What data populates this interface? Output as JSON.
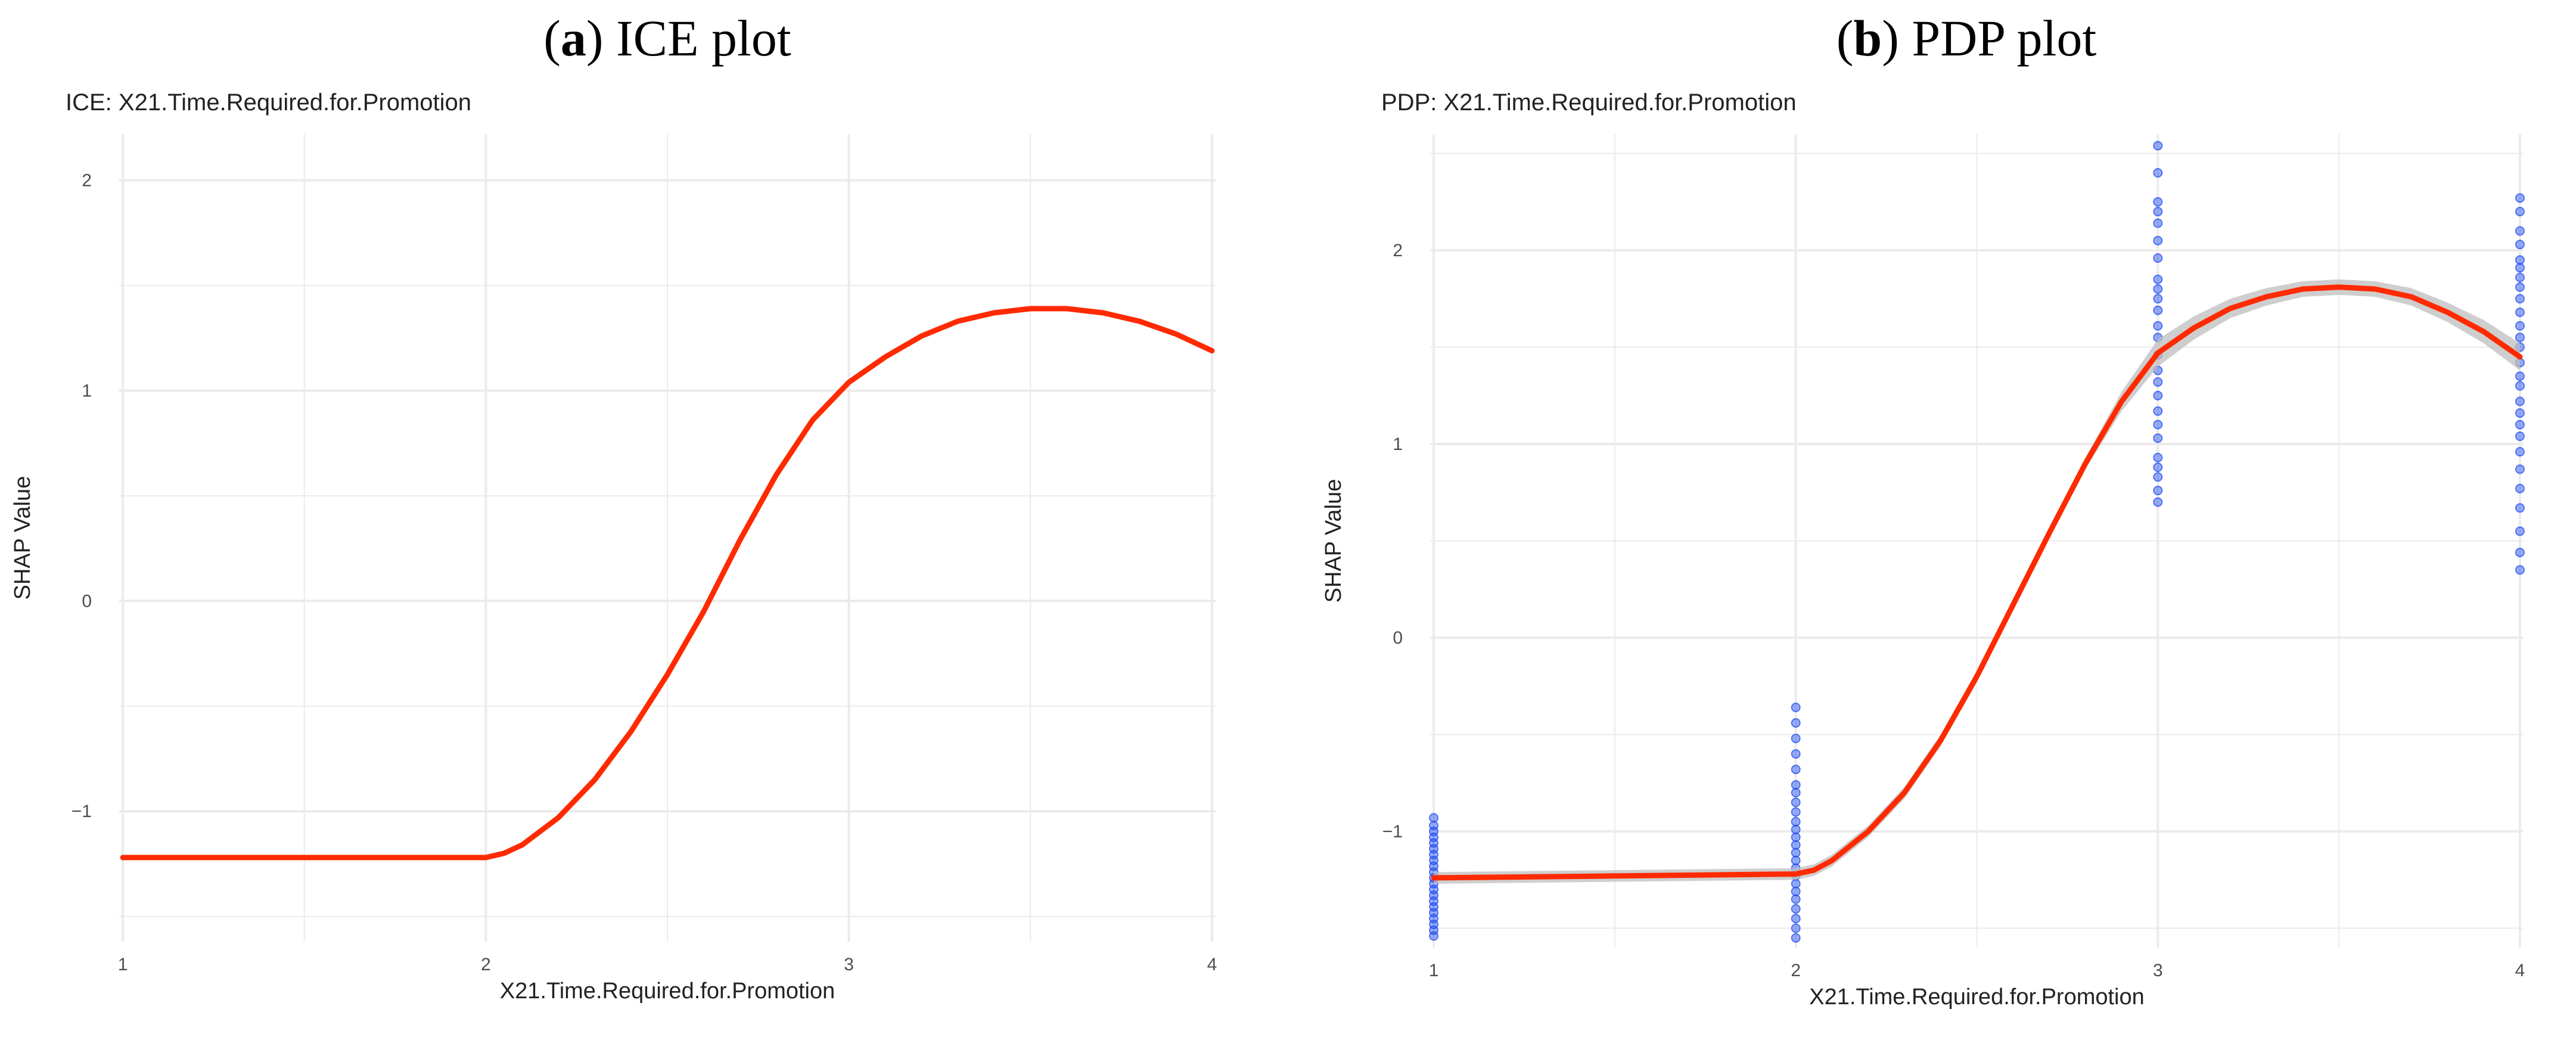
{
  "figure": {
    "panels": [
      {
        "letter": "a",
        "heading": "ICE plot"
      },
      {
        "letter": "b",
        "heading": "PDP plot"
      }
    ]
  },
  "colors": {
    "line": "#ff2a00",
    "points": "#1a47f0",
    "ribbon": "#bdbdbd",
    "grid": "#ebebeb",
    "text": "#222222",
    "tick_text": "#4d4d4d"
  },
  "chart_data": [
    {
      "type": "line",
      "title": "ICE: X21.Time.Required.for.Promotion",
      "xlabel": "X21.Time.Required.for.Promotion",
      "ylabel": "SHAP Value",
      "xlim": [
        0.99,
        4.01
      ],
      "ylim": [
        -1.62,
        2.22
      ],
      "x_ticks": [
        1,
        2,
        3,
        4
      ],
      "y_ticks": [
        -1,
        0,
        1,
        2
      ],
      "x_tick_labels": [
        "1",
        "2",
        "3",
        "4"
      ],
      "y_tick_labels": [
        "−1",
        "0",
        "1",
        "2"
      ],
      "grid": true,
      "series": [
        {
          "x": [
            1.0,
            1.5,
            2.0,
            2.05,
            2.1,
            2.2,
            2.3,
            2.4,
            2.5,
            2.6,
            2.7,
            2.8,
            2.9,
            3.0,
            3.1,
            3.2,
            3.3,
            3.4,
            3.5,
            3.6,
            3.7,
            3.8,
            3.9,
            4.0
          ],
          "y": [
            -1.22,
            -1.22,
            -1.22,
            -1.2,
            -1.16,
            -1.03,
            -0.85,
            -0.62,
            -0.35,
            -0.05,
            0.29,
            0.6,
            0.86,
            1.04,
            1.16,
            1.26,
            1.33,
            1.37,
            1.39,
            1.39,
            1.37,
            1.33,
            1.27,
            1.19
          ]
        }
      ]
    },
    {
      "type": "scatter",
      "title": "PDP: X21.Time.Required.for.Promotion",
      "xlabel": "X21.Time.Required.for.Promotion",
      "ylabel": "SHAP Value",
      "xlim": [
        0.99,
        4.01
      ],
      "ylim": [
        -1.6,
        2.6
      ],
      "x_ticks": [
        1,
        2,
        3,
        4
      ],
      "y_ticks": [
        -1,
        0,
        1,
        2
      ],
      "x_tick_labels": [
        "1",
        "2",
        "3",
        "4"
      ],
      "y_tick_labels": [
        "−1",
        "0",
        "1",
        "2"
      ],
      "grid": true,
      "points": [
        {
          "x": 1,
          "y": -0.93
        },
        {
          "x": 1,
          "y": -0.97
        },
        {
          "x": 1,
          "y": -1.0
        },
        {
          "x": 1,
          "y": -1.03
        },
        {
          "x": 1,
          "y": -1.06
        },
        {
          "x": 1,
          "y": -1.09
        },
        {
          "x": 1,
          "y": -1.12
        },
        {
          "x": 1,
          "y": -1.15
        },
        {
          "x": 1,
          "y": -1.18
        },
        {
          "x": 1,
          "y": -1.21
        },
        {
          "x": 1,
          "y": -1.24
        },
        {
          "x": 1,
          "y": -1.27
        },
        {
          "x": 1,
          "y": -1.3
        },
        {
          "x": 1,
          "y": -1.33
        },
        {
          "x": 1,
          "y": -1.36
        },
        {
          "x": 1,
          "y": -1.39
        },
        {
          "x": 1,
          "y": -1.42
        },
        {
          "x": 1,
          "y": -1.45
        },
        {
          "x": 1,
          "y": -1.48
        },
        {
          "x": 1,
          "y": -1.51
        },
        {
          "x": 1,
          "y": -1.54
        },
        {
          "x": 2,
          "y": -0.36
        },
        {
          "x": 2,
          "y": -0.44
        },
        {
          "x": 2,
          "y": -0.52
        },
        {
          "x": 2,
          "y": -0.6
        },
        {
          "x": 2,
          "y": -0.68
        },
        {
          "x": 2,
          "y": -0.76
        },
        {
          "x": 2,
          "y": -0.8
        },
        {
          "x": 2,
          "y": -0.85
        },
        {
          "x": 2,
          "y": -0.9
        },
        {
          "x": 2,
          "y": -0.95
        },
        {
          "x": 2,
          "y": -0.99
        },
        {
          "x": 2,
          "y": -1.03
        },
        {
          "x": 2,
          "y": -1.07
        },
        {
          "x": 2,
          "y": -1.11
        },
        {
          "x": 2,
          "y": -1.15
        },
        {
          "x": 2,
          "y": -1.19
        },
        {
          "x": 2,
          "y": -1.23
        },
        {
          "x": 2,
          "y": -1.27
        },
        {
          "x": 2,
          "y": -1.31
        },
        {
          "x": 2,
          "y": -1.35
        },
        {
          "x": 2,
          "y": -1.4
        },
        {
          "x": 2,
          "y": -1.45
        },
        {
          "x": 2,
          "y": -1.5
        },
        {
          "x": 2,
          "y": -1.55
        },
        {
          "x": 3,
          "y": 2.54
        },
        {
          "x": 3,
          "y": 2.4
        },
        {
          "x": 3,
          "y": 2.25
        },
        {
          "x": 3,
          "y": 2.2
        },
        {
          "x": 3,
          "y": 2.14
        },
        {
          "x": 3,
          "y": 2.05
        },
        {
          "x": 3,
          "y": 1.96
        },
        {
          "x": 3,
          "y": 1.85
        },
        {
          "x": 3,
          "y": 1.8
        },
        {
          "x": 3,
          "y": 1.75
        },
        {
          "x": 3,
          "y": 1.69
        },
        {
          "x": 3,
          "y": 1.61
        },
        {
          "x": 3,
          "y": 1.55
        },
        {
          "x": 3,
          "y": 1.46
        },
        {
          "x": 3,
          "y": 1.38
        },
        {
          "x": 3,
          "y": 1.32
        },
        {
          "x": 3,
          "y": 1.25
        },
        {
          "x": 3,
          "y": 1.17
        },
        {
          "x": 3,
          "y": 1.1
        },
        {
          "x": 3,
          "y": 1.03
        },
        {
          "x": 3,
          "y": 0.93
        },
        {
          "x": 3,
          "y": 0.88
        },
        {
          "x": 3,
          "y": 0.83
        },
        {
          "x": 3,
          "y": 0.76
        },
        {
          "x": 3,
          "y": 0.7
        },
        {
          "x": 4,
          "y": 2.27
        },
        {
          "x": 4,
          "y": 2.2
        },
        {
          "x": 4,
          "y": 2.1
        },
        {
          "x": 4,
          "y": 2.03
        },
        {
          "x": 4,
          "y": 1.95
        },
        {
          "x": 4,
          "y": 1.91
        },
        {
          "x": 4,
          "y": 1.86
        },
        {
          "x": 4,
          "y": 1.81
        },
        {
          "x": 4,
          "y": 1.75
        },
        {
          "x": 4,
          "y": 1.68
        },
        {
          "x": 4,
          "y": 1.61
        },
        {
          "x": 4,
          "y": 1.55
        },
        {
          "x": 4,
          "y": 1.5
        },
        {
          "x": 4,
          "y": 1.42
        },
        {
          "x": 4,
          "y": 1.35
        },
        {
          "x": 4,
          "y": 1.3
        },
        {
          "x": 4,
          "y": 1.22
        },
        {
          "x": 4,
          "y": 1.16
        },
        {
          "x": 4,
          "y": 1.1
        },
        {
          "x": 4,
          "y": 1.04
        },
        {
          "x": 4,
          "y": 0.96
        },
        {
          "x": 4,
          "y": 0.87
        },
        {
          "x": 4,
          "y": 0.77
        },
        {
          "x": 4,
          "y": 0.67
        },
        {
          "x": 4,
          "y": 0.55
        },
        {
          "x": 4,
          "y": 0.44
        },
        {
          "x": 4,
          "y": 0.35
        }
      ],
      "series": [
        {
          "x": [
            1.0,
            1.5,
            2.0,
            2.05,
            2.1,
            2.2,
            2.3,
            2.4,
            2.5,
            2.6,
            2.7,
            2.8,
            2.9,
            3.0,
            3.1,
            3.2,
            3.3,
            3.4,
            3.5,
            3.6,
            3.7,
            3.8,
            3.9,
            4.0
          ],
          "y": [
            -1.24,
            -1.23,
            -1.22,
            -1.2,
            -1.15,
            -1.0,
            -0.8,
            -0.53,
            -0.2,
            0.17,
            0.54,
            0.9,
            1.22,
            1.47,
            1.6,
            1.7,
            1.76,
            1.8,
            1.81,
            1.8,
            1.76,
            1.68,
            1.58,
            1.45
          ],
          "band": [
            0.03,
            0.03,
            0.03,
            0.03,
            0.03,
            0.03,
            0.03,
            0.03,
            0.03,
            0.03,
            0.03,
            0.03,
            0.05,
            0.07,
            0.06,
            0.05,
            0.045,
            0.04,
            0.04,
            0.04,
            0.045,
            0.05,
            0.06,
            0.07
          ]
        }
      ]
    }
  ]
}
